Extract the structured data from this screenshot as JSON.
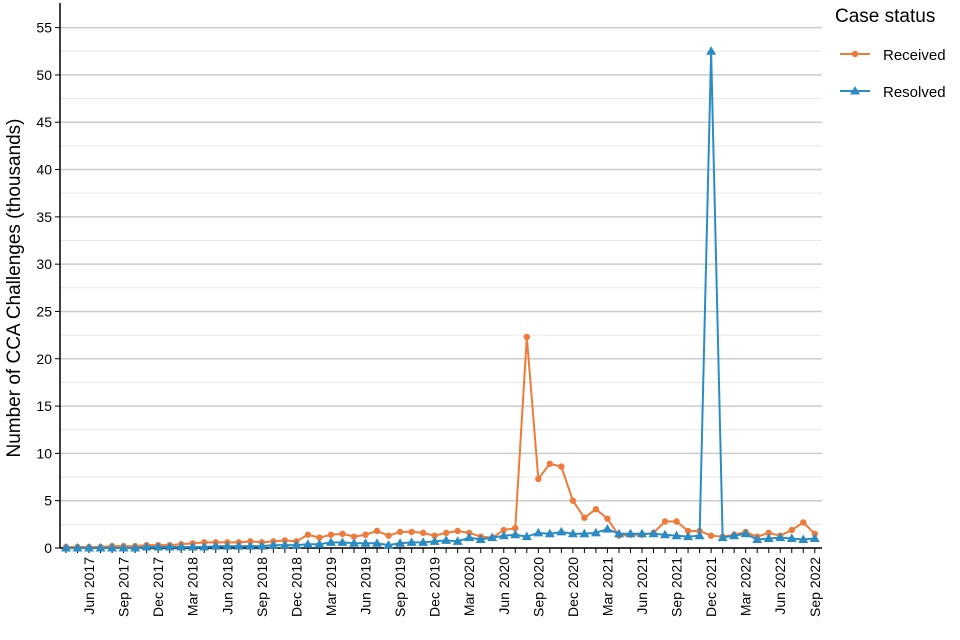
{
  "chart_data": {
    "type": "line",
    "y_label": "Number of CCA Challenges (thousands)",
    "legend_title": "Case status",
    "legend": "right",
    "grid": true,
    "ylim": [
      0,
      57.6
    ],
    "yticks": [
      0,
      5,
      10,
      15,
      20,
      25,
      30,
      35,
      40,
      45,
      50,
      55
    ],
    "minor_yticks": [
      2.5,
      7.5,
      12.5,
      17.5,
      22.5,
      27.5,
      32.5,
      37.5,
      42.5,
      47.5,
      52.5
    ],
    "categories": [
      null,
      null,
      "Jun 2017",
      null,
      null,
      "Sep 2017",
      null,
      null,
      "Dec 2017",
      null,
      null,
      "Mar 2018",
      null,
      null,
      "Jun 2018",
      null,
      null,
      "Sep 2018",
      null,
      null,
      "Dec 2018",
      null,
      null,
      "Mar 2019",
      null,
      null,
      "Jun 2019",
      null,
      null,
      "Sep 2019",
      null,
      null,
      "Dec 2019",
      null,
      null,
      "Mar 2020",
      null,
      null,
      "Jun 2020",
      null,
      null,
      "Sep 2020",
      null,
      null,
      "Dec 2020",
      null,
      null,
      "Mar 2021",
      null,
      null,
      "Jun 2021",
      null,
      null,
      "Sep 2021",
      null,
      null,
      "Dec 2021",
      null,
      null,
      "Mar 2022",
      null,
      null,
      "Jun 2022",
      null,
      null,
      "Sep 2022"
    ],
    "series": [
      {
        "name": "Received",
        "color": "#ef7b3b",
        "marker": "circle",
        "values": [
          0.1,
          0.1,
          0.1,
          0.1,
          0.2,
          0.2,
          0.2,
          0.3,
          0.3,
          0.3,
          0.4,
          0.5,
          0.6,
          0.6,
          0.6,
          0.6,
          0.7,
          0.6,
          0.7,
          0.8,
          0.7,
          1.4,
          1.1,
          1.4,
          1.5,
          1.2,
          1.4,
          1.8,
          1.3,
          1.7,
          1.7,
          1.6,
          1.3,
          1.6,
          1.8,
          1.6,
          1.2,
          1.1,
          1.9,
          2.1,
          22.3,
          7.3,
          8.9,
          8.6,
          5.0,
          3.2,
          4.1,
          3.1,
          1.3,
          1.4,
          1.4,
          1.6,
          2.8,
          2.8,
          1.8,
          1.8,
          1.3,
          1.2,
          1.4,
          1.7,
          1.2,
          1.6,
          1.3,
          1.9,
          2.7,
          1.5
        ]
      },
      {
        "name": "Resolved",
        "color": "#2b8cc4",
        "marker": "triangle",
        "values": [
          0,
          0,
          0,
          0,
          0,
          0,
          0,
          0.1,
          0.1,
          0.1,
          0.1,
          0.1,
          0.1,
          0.2,
          0.2,
          0.2,
          0.2,
          0.2,
          0.3,
          0.3,
          0.3,
          0.4,
          0.4,
          0.6,
          0.6,
          0.5,
          0.5,
          0.5,
          0.3,
          0.5,
          0.6,
          0.6,
          0.7,
          0.8,
          0.7,
          1.1,
          0.9,
          1.1,
          1.3,
          1.4,
          1.2,
          1.6,
          1.5,
          1.7,
          1.5,
          1.5,
          1.6,
          2.0,
          1.5,
          1.5,
          1.5,
          1.5,
          1.4,
          1.3,
          1.2,
          1.3,
          52.5,
          1.1,
          1.3,
          1.5,
          0.9,
          1.0,
          1.1,
          1.0,
          0.9,
          1.0
        ]
      }
    ]
  }
}
